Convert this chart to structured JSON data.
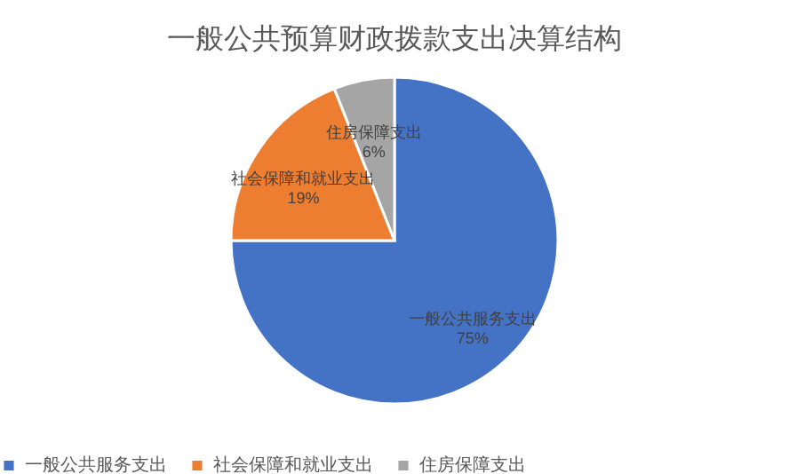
{
  "chart_data": {
    "type": "pie",
    "title": "一般公共预算财政拨款支出决算结构",
    "categories": [
      "一般公共服务支出",
      "社会保障和就业支出",
      "住房保障支出"
    ],
    "values": [
      75,
      19,
      6
    ],
    "colors": [
      "#4472c4",
      "#ed7d31",
      "#a5a5a5"
    ],
    "value_labels": [
      "75%",
      "19%",
      "6%"
    ],
    "legend": "bottom"
  }
}
